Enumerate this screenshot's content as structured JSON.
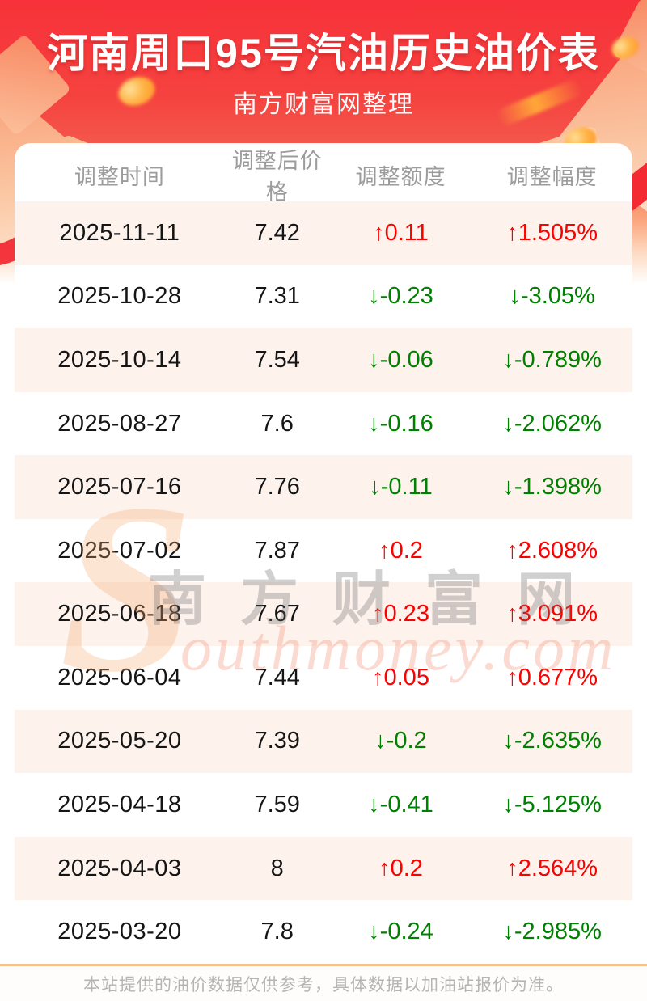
{
  "banner": {
    "title": "河南周口95号汽油历史油价表",
    "subtitle": "南方财富网整理"
  },
  "table": {
    "headers": [
      "调整时间",
      "调整后价格",
      "调整额度",
      "调整幅度"
    ],
    "rows": [
      {
        "date": "2025-11-11",
        "price": "7.42",
        "change": "↑0.11",
        "rate": "↑1.505%",
        "dir": "up"
      },
      {
        "date": "2025-10-28",
        "price": "7.31",
        "change": "↓-0.23",
        "rate": "↓-3.05%",
        "dir": "down"
      },
      {
        "date": "2025-10-14",
        "price": "7.54",
        "change": "↓-0.06",
        "rate": "↓-0.789%",
        "dir": "down"
      },
      {
        "date": "2025-08-27",
        "price": "7.6",
        "change": "↓-0.16",
        "rate": "↓-2.062%",
        "dir": "down"
      },
      {
        "date": "2025-07-16",
        "price": "7.76",
        "change": "↓-0.11",
        "rate": "↓-1.398%",
        "dir": "down"
      },
      {
        "date": "2025-07-02",
        "price": "7.87",
        "change": "↑0.2",
        "rate": "↑2.608%",
        "dir": "up"
      },
      {
        "date": "2025-06-18",
        "price": "7.67",
        "change": "↑0.23",
        "rate": "↑3.091%",
        "dir": "up"
      },
      {
        "date": "2025-06-04",
        "price": "7.44",
        "change": "↑0.05",
        "rate": "↑0.677%",
        "dir": "up"
      },
      {
        "date": "2025-05-20",
        "price": "7.39",
        "change": "↓-0.2",
        "rate": "↓-2.635%",
        "dir": "down"
      },
      {
        "date": "2025-04-18",
        "price": "7.59",
        "change": "↓-0.41",
        "rate": "↓-5.125%",
        "dir": "down"
      },
      {
        "date": "2025-04-03",
        "price": "8",
        "change": "↑0.2",
        "rate": "↑2.564%",
        "dir": "up"
      },
      {
        "date": "2025-03-20",
        "price": "7.8",
        "change": "↓-0.24",
        "rate": "↓-2.985%",
        "dir": "down"
      }
    ]
  },
  "watermark": {
    "cn": "南方财富网",
    "en_initial": "S",
    "en_rest": "outhmoney.com"
  },
  "footer": {
    "note": "本站提供的油价数据仅供参考，具体数据以加油站报价为准。"
  },
  "colors": {
    "banner_top": "#f7323a",
    "up": "#fe0000",
    "down": "#008000",
    "row_alt_bg": "#fdf2ec",
    "footer_line": "#f5c28b"
  }
}
